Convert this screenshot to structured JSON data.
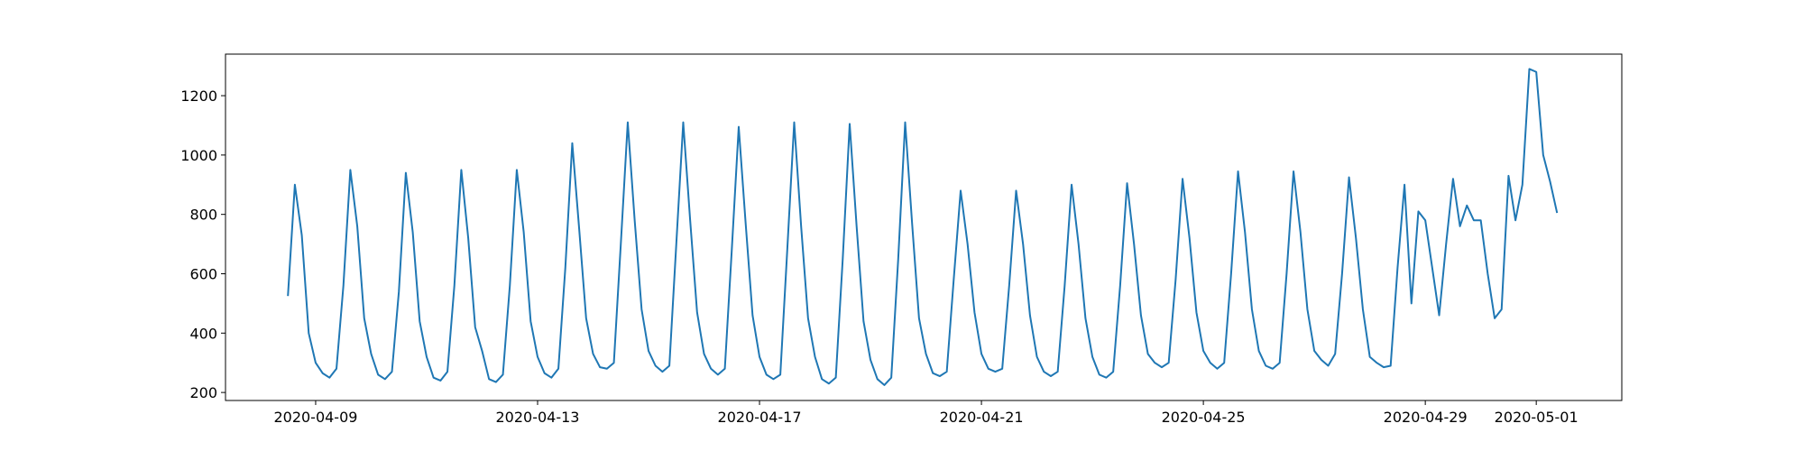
{
  "chart_data": {
    "type": "line",
    "x": [
      "2020-04-08T12:00",
      "2020-04-08T15:00",
      "2020-04-08T18:00",
      "2020-04-08T21:00",
      "2020-04-09T00:00",
      "2020-04-09T03:00",
      "2020-04-09T06:00",
      "2020-04-09T09:00",
      "2020-04-09T12:00",
      "2020-04-09T15:00",
      "2020-04-09T18:00",
      "2020-04-09T21:00",
      "2020-04-10T00:00",
      "2020-04-10T03:00",
      "2020-04-10T06:00",
      "2020-04-10T09:00",
      "2020-04-10T12:00",
      "2020-04-10T15:00",
      "2020-04-10T18:00",
      "2020-04-10T21:00",
      "2020-04-11T00:00",
      "2020-04-11T03:00",
      "2020-04-11T06:00",
      "2020-04-11T09:00",
      "2020-04-11T12:00",
      "2020-04-11T15:00",
      "2020-04-11T18:00",
      "2020-04-11T21:00",
      "2020-04-12T00:00",
      "2020-04-12T03:00",
      "2020-04-12T06:00",
      "2020-04-12T09:00",
      "2020-04-12T12:00",
      "2020-04-12T15:00",
      "2020-04-12T18:00",
      "2020-04-12T21:00",
      "2020-04-13T00:00",
      "2020-04-13T03:00",
      "2020-04-13T06:00",
      "2020-04-13T09:00",
      "2020-04-13T12:00",
      "2020-04-13T15:00",
      "2020-04-13T18:00",
      "2020-04-13T21:00",
      "2020-04-14T00:00",
      "2020-04-14T03:00",
      "2020-04-14T06:00",
      "2020-04-14T09:00",
      "2020-04-14T12:00",
      "2020-04-14T15:00",
      "2020-04-14T18:00",
      "2020-04-14T21:00",
      "2020-04-15T00:00",
      "2020-04-15T03:00",
      "2020-04-15T06:00",
      "2020-04-15T09:00",
      "2020-04-15T12:00",
      "2020-04-15T15:00",
      "2020-04-15T18:00",
      "2020-04-15T21:00",
      "2020-04-16T00:00",
      "2020-04-16T03:00",
      "2020-04-16T06:00",
      "2020-04-16T09:00",
      "2020-04-16T12:00",
      "2020-04-16T15:00",
      "2020-04-16T18:00",
      "2020-04-16T21:00",
      "2020-04-17T00:00",
      "2020-04-17T03:00",
      "2020-04-17T06:00",
      "2020-04-17T09:00",
      "2020-04-17T12:00",
      "2020-04-17T15:00",
      "2020-04-17T18:00",
      "2020-04-17T21:00",
      "2020-04-18T00:00",
      "2020-04-18T03:00",
      "2020-04-18T06:00",
      "2020-04-18T09:00",
      "2020-04-18T12:00",
      "2020-04-18T15:00",
      "2020-04-18T18:00",
      "2020-04-18T21:00",
      "2020-04-19T00:00",
      "2020-04-19T03:00",
      "2020-04-19T06:00",
      "2020-04-19T09:00",
      "2020-04-19T12:00",
      "2020-04-19T15:00",
      "2020-04-19T18:00",
      "2020-04-19T21:00",
      "2020-04-20T00:00",
      "2020-04-20T03:00",
      "2020-04-20T06:00",
      "2020-04-20T09:00",
      "2020-04-20T12:00",
      "2020-04-20T15:00",
      "2020-04-20T18:00",
      "2020-04-20T21:00",
      "2020-04-21T00:00",
      "2020-04-21T03:00",
      "2020-04-21T06:00",
      "2020-04-21T09:00",
      "2020-04-21T12:00",
      "2020-04-21T15:00",
      "2020-04-21T18:00",
      "2020-04-21T21:00",
      "2020-04-22T00:00",
      "2020-04-22T03:00",
      "2020-04-22T06:00",
      "2020-04-22T09:00",
      "2020-04-22T12:00",
      "2020-04-22T15:00",
      "2020-04-22T18:00",
      "2020-04-22T21:00",
      "2020-04-23T00:00",
      "2020-04-23T03:00",
      "2020-04-23T06:00",
      "2020-04-23T09:00",
      "2020-04-23T12:00",
      "2020-04-23T15:00",
      "2020-04-23T18:00",
      "2020-04-23T21:00",
      "2020-04-24T00:00",
      "2020-04-24T03:00",
      "2020-04-24T06:00",
      "2020-04-24T09:00",
      "2020-04-24T12:00",
      "2020-04-24T15:00",
      "2020-04-24T18:00",
      "2020-04-24T21:00",
      "2020-04-25T00:00",
      "2020-04-25T03:00",
      "2020-04-25T06:00",
      "2020-04-25T09:00",
      "2020-04-25T12:00",
      "2020-04-25T15:00",
      "2020-04-25T18:00",
      "2020-04-25T21:00",
      "2020-04-26T00:00",
      "2020-04-26T03:00",
      "2020-04-26T06:00",
      "2020-04-26T09:00",
      "2020-04-26T12:00",
      "2020-04-26T15:00",
      "2020-04-26T18:00",
      "2020-04-26T21:00",
      "2020-04-27T00:00",
      "2020-04-27T03:00",
      "2020-04-27T06:00",
      "2020-04-27T09:00",
      "2020-04-27T12:00",
      "2020-04-27T15:00",
      "2020-04-27T18:00",
      "2020-04-27T21:00",
      "2020-04-28T00:00",
      "2020-04-28T03:00",
      "2020-04-28T06:00",
      "2020-04-28T09:00",
      "2020-04-28T12:00",
      "2020-04-28T15:00",
      "2020-04-28T18:00",
      "2020-04-28T21:00",
      "2020-04-29T00:00",
      "2020-04-29T03:00",
      "2020-04-29T06:00",
      "2020-04-29T09:00",
      "2020-04-29T12:00",
      "2020-04-29T15:00",
      "2020-04-29T18:00",
      "2020-04-29T21:00",
      "2020-04-30T00:00",
      "2020-04-30T03:00",
      "2020-04-30T06:00",
      "2020-04-30T09:00",
      "2020-04-30T12:00",
      "2020-04-30T15:00",
      "2020-04-30T18:00",
      "2020-04-30T21:00",
      "2020-05-01T00:00",
      "2020-05-01T03:00",
      "2020-05-01T06:00",
      "2020-05-01T09:00"
    ],
    "series": [
      {
        "color": "#1f77b4",
        "values": [
          525,
          900,
          730,
          400,
          300,
          265,
          250,
          280,
          560,
          950,
          760,
          450,
          330,
          260,
          245,
          270,
          540,
          940,
          740,
          440,
          320,
          250,
          240,
          270,
          560,
          950,
          720,
          420,
          340,
          245,
          235,
          260,
          560,
          950,
          740,
          440,
          320,
          265,
          250,
          280,
          620,
          1040,
          750,
          450,
          330,
          285,
          280,
          300,
          700,
          1110,
          780,
          480,
          340,
          290,
          270,
          290,
          700,
          1110,
          780,
          470,
          330,
          280,
          260,
          280,
          680,
          1095,
          770,
          460,
          320,
          260,
          245,
          260,
          680,
          1110,
          760,
          450,
          320,
          245,
          230,
          250,
          650,
          1105,
          760,
          440,
          310,
          245,
          225,
          250,
          650,
          1110,
          770,
          450,
          330,
          265,
          255,
          270,
          580,
          880,
          700,
          470,
          330,
          280,
          270,
          280,
          560,
          880,
          700,
          460,
          320,
          270,
          255,
          270,
          560,
          900,
          700,
          450,
          320,
          260,
          250,
          270,
          560,
          905,
          700,
          460,
          330,
          300,
          285,
          300,
          580,
          920,
          720,
          470,
          340,
          300,
          280,
          300,
          600,
          945,
          740,
          480,
          340,
          290,
          280,
          300,
          600,
          945,
          740,
          480,
          340,
          310,
          290,
          330,
          600,
          925,
          720,
          480,
          320,
          300,
          285,
          290,
          620,
          900,
          500,
          810,
          780,
          620,
          460,
          700,
          920,
          760,
          830,
          780,
          780,
          600,
          450,
          480,
          930,
          780,
          900,
          1290,
          1280,
          1000,
          910,
          805
        ]
      }
    ],
    "xlim": [
      "2020-04-07T09:00",
      "2020-05-02T13:00"
    ],
    "xticks": [
      "2020-04-09",
      "2020-04-13",
      "2020-04-17",
      "2020-04-21",
      "2020-04-25",
      "2020-04-29",
      "2020-05-01"
    ],
    "ylim": [
      173,
      1340
    ],
    "yticks": [
      200,
      400,
      600,
      800,
      1000,
      1200
    ]
  }
}
